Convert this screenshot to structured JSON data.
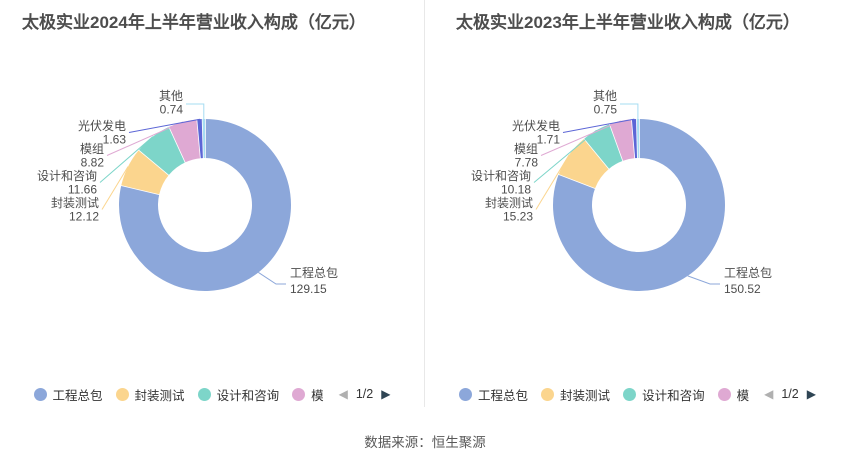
{
  "source_note": "数据来源：恒生聚源",
  "palette": [
    "#8CA7DA",
    "#FBD58E",
    "#7DD5C9",
    "#DFA9D3",
    "#5C66D6",
    "#A6DCF2"
  ],
  "style_colors": {
    "title_text": "#4d4d4d",
    "label_text": "#4d4d4d",
    "legend_text": "#333333",
    "divider": "#e8e8e8",
    "pager_active": "#2f4554",
    "pager_inactive": "#b0b0b0"
  },
  "legend": {
    "visible_items": [
      "工程总包",
      "封装测试",
      "设计和咨询",
      "模"
    ],
    "prev_icon": "◀",
    "page_text": "1/2",
    "next_icon": "▶"
  },
  "chart_data": [
    {
      "type": "pie",
      "subtype": "donut",
      "title": "太极实业2024年上半年营业收入构成（亿元）",
      "unit": "亿元",
      "legend_position": "bottom",
      "labels": [
        "工程总包",
        "封装测试",
        "设计和咨询",
        "模组",
        "光伏发电",
        "其他"
      ],
      "values": [
        129.15,
        12.12,
        11.66,
        8.82,
        1.63,
        0.74
      ]
    },
    {
      "type": "pie",
      "subtype": "donut",
      "title": "太极实业2023年上半年营业收入构成（亿元）",
      "unit": "亿元",
      "legend_position": "bottom",
      "labels": [
        "工程总包",
        "封装测试",
        "设计和咨询",
        "模组",
        "光伏发电",
        "其他"
      ],
      "values": [
        150.52,
        15.23,
        10.18,
        7.78,
        1.71,
        0.75
      ]
    }
  ]
}
